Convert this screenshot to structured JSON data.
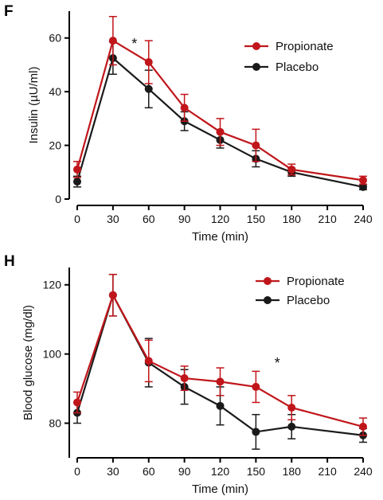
{
  "chart_data": [
    {
      "type": "line",
      "panel_label": "F",
      "ylabel": "Insulin (µU/ml)",
      "xlabel": "Time (min)",
      "xlim": [
        0,
        240
      ],
      "ylim": [
        0,
        70
      ],
      "xticks": [
        "0",
        "30",
        "60",
        "90",
        "120",
        "150",
        "180",
        "210",
        "240"
      ],
      "yticks": [
        "0",
        "20",
        "40",
        "60"
      ],
      "legend_position": "top-right",
      "annotation": {
        "text": "*",
        "x": 48,
        "y": 56
      },
      "series": [
        {
          "name": "Propionate",
          "color": "#c0161b",
          "x": [
            0,
            30,
            60,
            90,
            120,
            150,
            180,
            240
          ],
          "y": [
            11,
            59,
            51,
            34,
            25,
            20,
            11,
            7
          ],
          "err": [
            3,
            9,
            8,
            5,
            5,
            6,
            2,
            1.5
          ]
        },
        {
          "name": "Placebo",
          "color": "#1a1a1a",
          "x": [
            0,
            30,
            60,
            90,
            120,
            150,
            180,
            240
          ],
          "y": [
            6.5,
            52.5,
            41,
            29,
            22,
            15,
            10,
            4.5
          ],
          "err": [
            2,
            6,
            7,
            3.5,
            3,
            3,
            1.5,
            1
          ]
        }
      ]
    },
    {
      "type": "line",
      "panel_label": "H",
      "ylabel": "Blood glucose (mg/dl)",
      "xlabel": "Time (min)",
      "xlim": [
        0,
        240
      ],
      "ylim": [
        70,
        125
      ],
      "xticks": [
        "0",
        "30",
        "60",
        "90",
        "120",
        "150",
        "180",
        "210",
        "240"
      ],
      "yticks": [
        "80",
        "100",
        "120"
      ],
      "legend_position": "top-right",
      "annotation": {
        "text": "*",
        "x": 168,
        "y": 96
      },
      "series": [
        {
          "name": "Propionate",
          "color": "#c0161b",
          "x": [
            0,
            30,
            60,
            90,
            120,
            150,
            180,
            240
          ],
          "y": [
            86,
            117,
            98,
            93,
            92,
            90.5,
            84.5,
            79
          ],
          "err": [
            3,
            6,
            6,
            3.5,
            4,
            4.5,
            3.5,
            2.5
          ]
        },
        {
          "name": "Placebo",
          "color": "#1a1a1a",
          "x": [
            0,
            30,
            60,
            90,
            120,
            150,
            180,
            240
          ],
          "y": [
            83,
            117,
            97.5,
            90.5,
            85,
            77.5,
            79,
            76.5
          ],
          "err": [
            3,
            6,
            7,
            5,
            5.5,
            5,
            3.5,
            2
          ]
        }
      ]
    }
  ]
}
